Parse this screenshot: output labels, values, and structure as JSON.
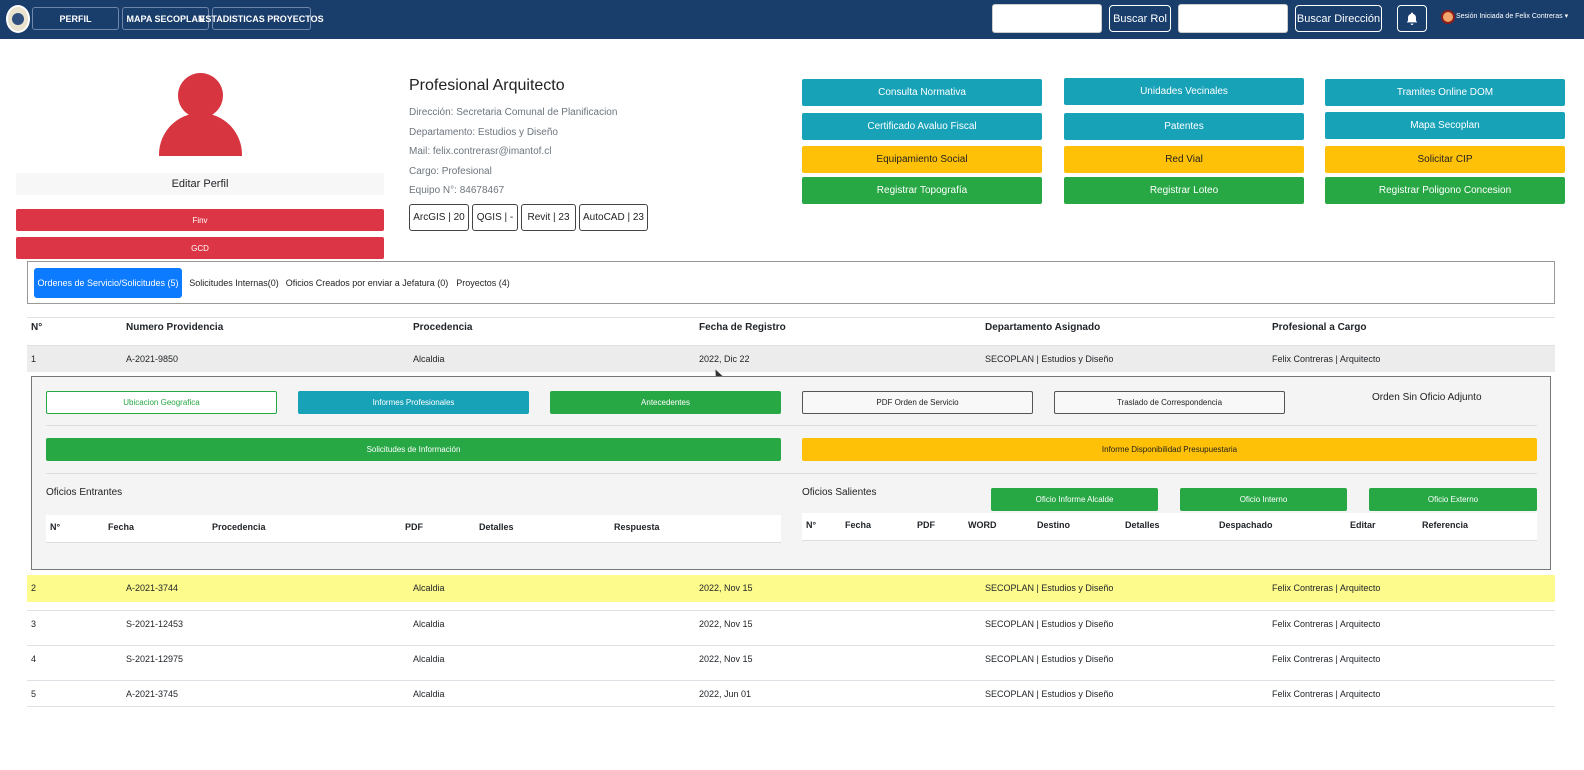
{
  "nav": {
    "tabs": [
      "PERFIL",
      "MAPA SECOPLAN",
      "ESTADISTICAS PROYECTOS"
    ],
    "search_rol_label": "Buscar Rol",
    "search_dir_label": "Buscar Dirección",
    "session_text": "Sesión Iniciada de Felix Contreras"
  },
  "profile": {
    "edit_label": "Editar Perfil",
    "red_buttons": [
      "Finv",
      "GCD"
    ],
    "title": "Profesional Arquitecto",
    "details": [
      "Dirección: Secretaria Comunal de Planificacion",
      "Departamento: Estudios y Diseño",
      "Mail: felix.contrerasr@imantof.cl",
      "Cargo: Profesional",
      "Equipo N°: 84678467"
    ],
    "software": [
      "ArcGIS | 20",
      "QGIS | -",
      "Revit | 23",
      "AutoCAD | 23"
    ]
  },
  "quick": [
    [
      "Consulta Normativa",
      "Unidades Vecinales",
      "Tramites Online DOM"
    ],
    [
      "Certificado Avaluo Fiscal",
      "Patentes",
      "Mapa Secoplan"
    ],
    [
      "Equipamiento Social",
      "Red Vial",
      "Solicitar CIP"
    ],
    [
      "Registrar Topografía",
      "Registrar Loteo",
      "Registrar Poligono Concesion"
    ]
  ],
  "tabs": [
    "Ordenes de Servicio/Solicitudes (5)",
    "Solicitudes Internas(0)",
    "Oficios Creados por enviar a Jefatura (0)",
    "Proyectos (4)"
  ],
  "table": {
    "headers": [
      "N°",
      "Numero Providencia",
      "Procedencia",
      "Fecha de Registro",
      "Departamento Asignado",
      "Profesional a Cargo"
    ],
    "rows": [
      [
        "1",
        "A-2021-9850",
        "Alcaldia",
        "2022, Dic 22",
        "SECOPLAN | Estudios y Diseño",
        "Felix Contreras | Arquitecto"
      ],
      [
        "2",
        "A-2021-3744",
        "Alcaldia",
        "2022, Nov 15",
        "SECOPLAN | Estudios y Diseño",
        "Felix Contreras | Arquitecto"
      ],
      [
        "3",
        "S-2021-12453",
        "Alcaldia",
        "2022, Nov 15",
        "SECOPLAN | Estudios y Diseño",
        "Felix Contreras | Arquitecto"
      ],
      [
        "4",
        "S-2021-12975",
        "Alcaldia",
        "2022, Nov 15",
        "SECOPLAN | Estudios y Diseño",
        "Felix Contreras | Arquitecto"
      ],
      [
        "5",
        "A-2021-3745",
        "Alcaldia",
        "2022, Jun 01",
        "SECOPLAN | Estudios y Diseño",
        "Felix Contreras | Arquitecto"
      ]
    ]
  },
  "detail": {
    "buttons": [
      "Ubicacion Geografica",
      "Informes Profesionales",
      "Antecedentes",
      "PDF Orden de Servicio",
      "Traslado de Correspondencia"
    ],
    "no_attachment": "Orden Sin Oficio Adjunto",
    "solicitudes": "Solicitudes de Información",
    "informe": "Informe Disponibilidad Presupuestaria",
    "entrantes_title": "Oficios Entrantes",
    "entrantes_headers": [
      "N°",
      "Fecha",
      "Procedencia",
      "PDF",
      "Detalles",
      "Respuesta"
    ],
    "salientes_title": "Oficios Salientes",
    "salientes_buttons": [
      "Oficio Informe Alcalde",
      "Oficio Interno",
      "Oficio Externo"
    ],
    "salientes_headers": [
      "N°",
      "Fecha",
      "PDF",
      "WORD",
      "Destino",
      "Detalles",
      "Despachado",
      "Editar",
      "Referencia"
    ]
  },
  "colors": {
    "navbar": "#1a3e6c",
    "teal": "#17a2b8",
    "yellow": "#ffc107",
    "green": "#28a745",
    "red": "#dc3545",
    "highlight": "#fdfb8c"
  }
}
